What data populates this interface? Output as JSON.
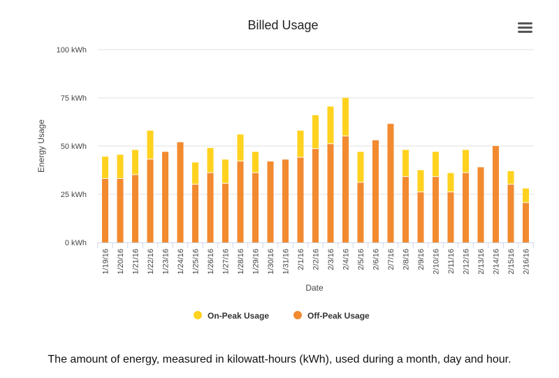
{
  "chart_data": {
    "type": "bar",
    "stacked": true,
    "title": "Billed Usage",
    "xlabel": "Date",
    "ylabel": "Energy Usage",
    "ylim": [
      0,
      100
    ],
    "yticks": [
      "0 kWh",
      "25 kWh",
      "50 kWh",
      "75 kWh",
      "100 kWh"
    ],
    "ytick_values": [
      0,
      25,
      50,
      75,
      100
    ],
    "categories": [
      "1/19/16",
      "1/20/16",
      "1/21/16",
      "1/22/16",
      "1/23/16",
      "1/24/16",
      "1/25/16",
      "1/26/16",
      "1/27/16",
      "1/28/16",
      "1/29/16",
      "1/30/16",
      "1/31/16",
      "2/1/16",
      "2/2/16",
      "2/3/16",
      "2/4/16",
      "2/5/16",
      "2/6/16",
      "2/7/16",
      "2/8/16",
      "2/9/16",
      "2/10/16",
      "2/11/16",
      "2/12/16",
      "2/13/16",
      "2/14/16",
      "2/15/16",
      "2/16/16"
    ],
    "series": [
      {
        "name": "Off-Peak Usage",
        "color": "#f28a30",
        "values": [
          33,
          33,
          35,
          43,
          47,
          52,
          30,
          36,
          30.5,
          42,
          36,
          42,
          43,
          44,
          48.5,
          51,
          55,
          31,
          53,
          61.5,
          34,
          26,
          34,
          26,
          36,
          39,
          50,
          30,
          20.5
        ]
      },
      {
        "name": "On-Peak Usage",
        "color": "#ffd21f",
        "values": [
          11.5,
          12.5,
          13,
          15,
          0,
          0,
          11.5,
          13,
          12.5,
          14,
          11,
          0,
          0,
          14,
          17.5,
          19.5,
          20,
          16,
          0,
          0,
          14,
          11.5,
          13,
          10,
          12,
          0,
          0,
          7,
          7.5
        ]
      }
    ],
    "legend": {
      "position": "bottom"
    },
    "grid": true
  },
  "caption": "The amount of energy, measured in kilowatt-hours (kWh), used during a month, day and hour.",
  "menu": {
    "icon": "hamburger-menu-icon"
  }
}
